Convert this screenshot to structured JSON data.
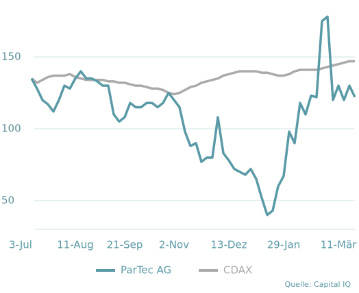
{
  "chart_data": {
    "type": "line",
    "categories": [
      "3-Jul",
      null,
      null,
      null,
      null,
      null,
      null,
      null,
      null,
      null,
      "11-Aug",
      null,
      null,
      null,
      null,
      null,
      null,
      null,
      null,
      "21-Sep",
      null,
      null,
      null,
      null,
      null,
      null,
      null,
      null,
      "2-Nov",
      null,
      null,
      null,
      null,
      null,
      null,
      null,
      null,
      null,
      "13-Dez",
      null,
      null,
      null,
      null,
      null,
      null,
      null,
      null,
      null,
      "29-Jan",
      null,
      null,
      null,
      null,
      null,
      null,
      null,
      null,
      null,
      "11-Mär",
      null,
      null,
      null
    ],
    "series": [
      {
        "name": "ParTec AG",
        "color": "#5a9aa6",
        "values": [
          null,
          null,
          135,
          128,
          120,
          117,
          112,
          120,
          130,
          128,
          135,
          140,
          135,
          135,
          133,
          130,
          130,
          110,
          105,
          108,
          118,
          115,
          115,
          118,
          118,
          115,
          118,
          125,
          120,
          115,
          98,
          88,
          90,
          77,
          80,
          80,
          108,
          83,
          78,
          72,
          70,
          68,
          72,
          65,
          52,
          40,
          43,
          60,
          67,
          98,
          90,
          118,
          110,
          123,
          122,
          175,
          178,
          120,
          130,
          120,
          130,
          122
        ]
      },
      {
        "name": "CDAX",
        "color": "#aaaaaa",
        "values": [
          null,
          null,
          135,
          132,
          134,
          136,
          137,
          137,
          137,
          138,
          136,
          135,
          134,
          134,
          134,
          134,
          133,
          133,
          132,
          132,
          131,
          130,
          130,
          129,
          128,
          128,
          127,
          125,
          124,
          125,
          127,
          129,
          130,
          132,
          133,
          134,
          135,
          137,
          138,
          139,
          140,
          140,
          140,
          140,
          139,
          139,
          138,
          137,
          137,
          138,
          140,
          141,
          141,
          141,
          141,
          142,
          143,
          144,
          145,
          146,
          147,
          147
        ]
      }
    ],
    "ylim": [
      30,
      182
    ],
    "yticks": [
      50,
      100,
      150
    ],
    "grid": true,
    "source": "Quelle: Capital IQ"
  }
}
